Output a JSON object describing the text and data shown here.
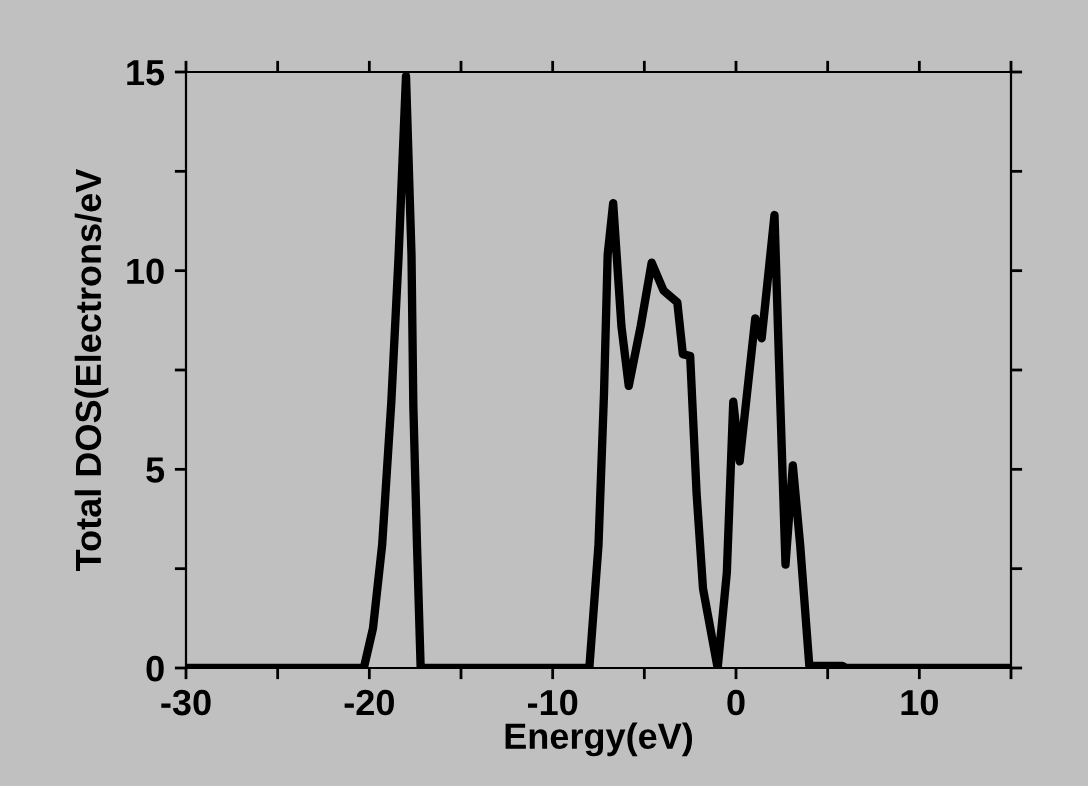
{
  "chart_data": {
    "type": "line",
    "xlabel": "Energy(eV)",
    "ylabel": "Total DOS(Electrons/eV",
    "xlim": [
      -30,
      15
    ],
    "ylim": [
      0,
      15
    ],
    "xticks": [
      -30,
      {
        "value": -25,
        "label": null
      },
      -20,
      {
        "value": -15,
        "label": null
      },
      -10,
      {
        "value": -5,
        "label": null
      },
      0,
      {
        "value": 5,
        "label": null
      },
      10,
      {
        "value": 15,
        "label": null
      }
    ],
    "yticks": [
      0,
      {
        "value": 2.5,
        "label": null
      },
      5,
      {
        "value": 7.5,
        "label": null
      },
      10,
      {
        "value": 12.5,
        "label": null
      },
      15
    ],
    "grid": false,
    "marker": "none",
    "line_style": "solid",
    "series": [
      {
        "color": "#000000",
        "x": [
          -30,
          -20.3,
          -19.8,
          -19.3,
          -18.8,
          -18.4,
          -18.0,
          -17.7,
          -17.6,
          -17.4,
          -17.2,
          -8.0,
          -7.5,
          -7.2,
          -7.0,
          -6.7,
          -6.25,
          -5.85,
          -5.2,
          -4.6,
          -3.95,
          -3.2,
          -2.9,
          -2.5,
          -2.15,
          -1.8,
          -1.0,
          -0.5,
          -0.15,
          0.2,
          0.6,
          1.05,
          1.4,
          2.1,
          2.4,
          2.7,
          3.1,
          3.5,
          4.0,
          5.8,
          6.0,
          15
        ],
        "values": [
          0,
          0,
          1.0,
          3.1,
          6.7,
          10.4,
          14.9,
          10.4,
          6.6,
          3.1,
          0,
          0,
          3.1,
          6.9,
          10.4,
          11.7,
          8.6,
          7.1,
          8.6,
          10.2,
          9.5,
          9.2,
          7.9,
          7.85,
          4.4,
          2.0,
          0,
          2.4,
          6.7,
          5.2,
          6.9,
          8.8,
          8.3,
          11.4,
          6.9,
          2.6,
          5.1,
          3.1,
          0.05,
          0.05,
          0,
          0
        ]
      }
    ]
  }
}
